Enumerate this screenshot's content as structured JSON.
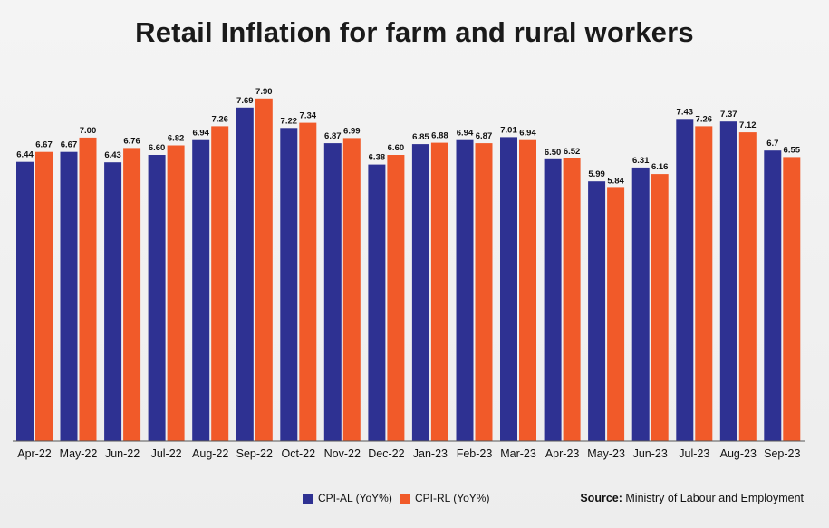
{
  "chart_data": {
    "type": "bar",
    "title": "Retail Inflation for farm and rural workers",
    "categories": [
      "Apr-22",
      "May-22",
      "Jun-22",
      "Jul-22",
      "Aug-22",
      "Sep-22",
      "Oct-22",
      "Nov-22",
      "Dec-22",
      "Jan-23",
      "Feb-23",
      "Mar-23",
      "Apr-23",
      "May-23",
      "Jun-23",
      "Jul-23",
      "Aug-23",
      "Sep-23"
    ],
    "series": [
      {
        "name": "CPI-AL (YoY%)",
        "color": "#2e3192",
        "values": [
          6.44,
          6.67,
          6.43,
          6.6,
          6.94,
          7.69,
          7.22,
          6.87,
          6.38,
          6.85,
          6.94,
          7.01,
          6.5,
          5.99,
          6.31,
          7.43,
          7.37,
          6.7
        ],
        "labels": [
          "6.44",
          "6.67",
          "6.43",
          "6.60",
          "6.94",
          "7.69",
          "7.22",
          "6.87",
          "6.38",
          "6.85",
          "6.94",
          "7.01",
          "6.50",
          "5.99",
          "6.31",
          "7.43",
          "7.37",
          "6.7"
        ]
      },
      {
        "name": "CPI-RL (YoY%)",
        "color": "#f15a29",
        "values": [
          6.67,
          7.0,
          6.76,
          6.82,
          7.26,
          7.9,
          7.34,
          6.99,
          6.6,
          6.88,
          6.87,
          6.94,
          6.52,
          5.84,
          6.16,
          7.26,
          7.12,
          6.55
        ],
        "labels": [
          "6.67",
          "7.00",
          "6.76",
          "6.82",
          "7.26",
          "7.90",
          "7.34",
          "6.99",
          "6.60",
          "6.88",
          "6.87",
          "6.94",
          "6.52",
          "5.84",
          "6.16",
          "7.26",
          "7.12",
          "6.55"
        ]
      }
    ],
    "ylim": [
      0,
      8.0
    ],
    "grid": false,
    "legend_position": "bottom-left"
  },
  "source": {
    "label": "Source:",
    "text": "Ministry of Labour and Employment"
  }
}
